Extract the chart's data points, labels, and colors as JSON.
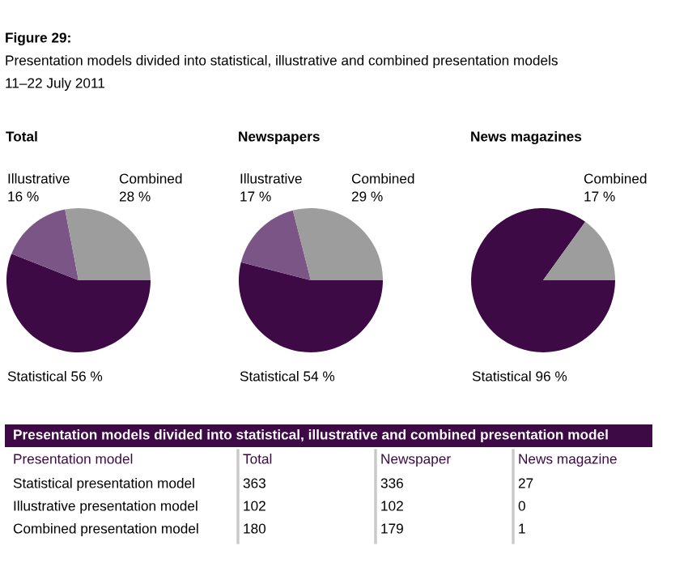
{
  "chart_data": [
    {
      "type": "pie",
      "title": "Total",
      "annotations": [
        "Figure 29:",
        "Presentation models divided into statistical, illustrative and combined presentation models",
        "11–22 July 2011"
      ],
      "categories": [
        "Statistical",
        "Illustrative",
        "Combined"
      ],
      "values": [
        56,
        16,
        28
      ],
      "colors": [
        "#3d0a45",
        "#7a5585",
        "#9d9d9d"
      ],
      "value_labels": [
        "56 %",
        "16 %",
        "28 %"
      ]
    },
    {
      "type": "pie",
      "title": "Newspapers",
      "categories": [
        "Statistical",
        "Illustrative",
        "Combined"
      ],
      "values": [
        54,
        17,
        29
      ],
      "colors": [
        "#3d0a45",
        "#7a5585",
        "#9d9d9d"
      ],
      "value_labels": [
        "54 %",
        "17 %",
        "29 %"
      ]
    },
    {
      "type": "pie",
      "title": "News magazines",
      "categories": [
        "Statistical",
        null,
        "Combined"
      ],
      "values": [
        96,
        null,
        17
      ],
      "colors": [
        "#3d0a45",
        "#7a5585",
        "#9d9d9d"
      ],
      "value_labels": [
        "96 %",
        null,
        "17 %"
      ]
    },
    {
      "type": "other",
      "title": "Presentation models divided into statistical, illustrative and combined presentation model",
      "ylabel": "Presentation model",
      "categories": [
        "Statistical presentation model",
        "Illustrative presentation model",
        "Combined presentation model"
      ],
      "series": [
        {
          "name": "Total",
          "values": [
            363,
            102,
            180
          ]
        },
        {
          "name": "Newspaper",
          "values": [
            336,
            102,
            179
          ]
        },
        {
          "name": "News magazine",
          "values": [
            27,
            0,
            1
          ]
        }
      ],
      "color": "#3d0a45",
      "data_labels": true
    }
  ]
}
